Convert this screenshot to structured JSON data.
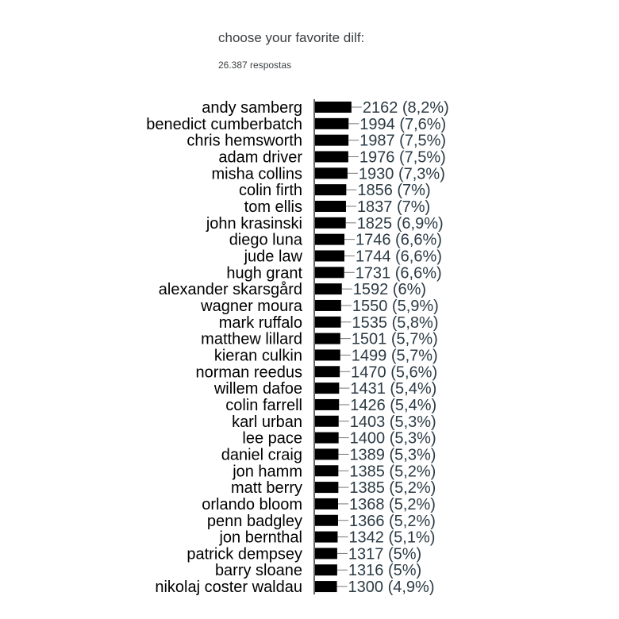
{
  "header": {
    "title": "choose your favorite dilf:",
    "responses": "26.387 respostas"
  },
  "chart_data": {
    "type": "bar",
    "orientation": "horizontal",
    "title": "choose your favorite dilf:",
    "bar_color": "#000000",
    "categories": [
      "andy samberg",
      "benedict cumberbatch",
      "chris hemsworth",
      "adam driver",
      "misha collins",
      "colin firth",
      "tom ellis",
      "john krasinski",
      "diego luna",
      "jude law",
      "hugh grant",
      "alexander skarsgård",
      "wagner moura",
      "mark ruffalo",
      "matthew lillard",
      "kieran culkin",
      "norman reedus",
      "willem dafoe",
      "colin farrell",
      "karl urban",
      "lee pace",
      "daniel craig",
      "jon hamm",
      "matt berry",
      "orlando bloom",
      "penn badgley",
      "jon bernthal",
      "patrick dempsey",
      "barry sloane",
      "nikolaj coster waldau"
    ],
    "values": [
      2162,
      1994,
      1987,
      1976,
      1930,
      1856,
      1837,
      1825,
      1746,
      1744,
      1731,
      1592,
      1550,
      1535,
      1501,
      1499,
      1470,
      1431,
      1426,
      1403,
      1400,
      1389,
      1385,
      1385,
      1368,
      1366,
      1342,
      1317,
      1316,
      1300
    ],
    "data_labels": [
      "2162 (8,2%)",
      "1994 (7,6%)",
      "1987 (7,5%)",
      "1976 (7,5%)",
      "1930 (7,3%)",
      "1856 (7%)",
      "1837 (7%)",
      "1825 (6,9%)",
      "1746 (6,6%)",
      "1744 (6,6%)",
      "1731 (6,6%)",
      "1592 (6%)",
      "1550 (5,9%)",
      "1535 (5,8%)",
      "1501 (5,7%)",
      "1499 (5,7%)",
      "1470 (5,6%)",
      "1431 (5,4%)",
      "1426 (5,4%)",
      "1403 (5,3%)",
      "1400 (5,3%)",
      "1389 (5,3%)",
      "1385 (5,2%)",
      "1385 (5,2%)",
      "1368 (5,2%)",
      "1366 (5,2%)",
      "1342 (5,1%)",
      "1317 (5%)",
      "1316 (5%)",
      "1300 (4,9%)"
    ]
  }
}
